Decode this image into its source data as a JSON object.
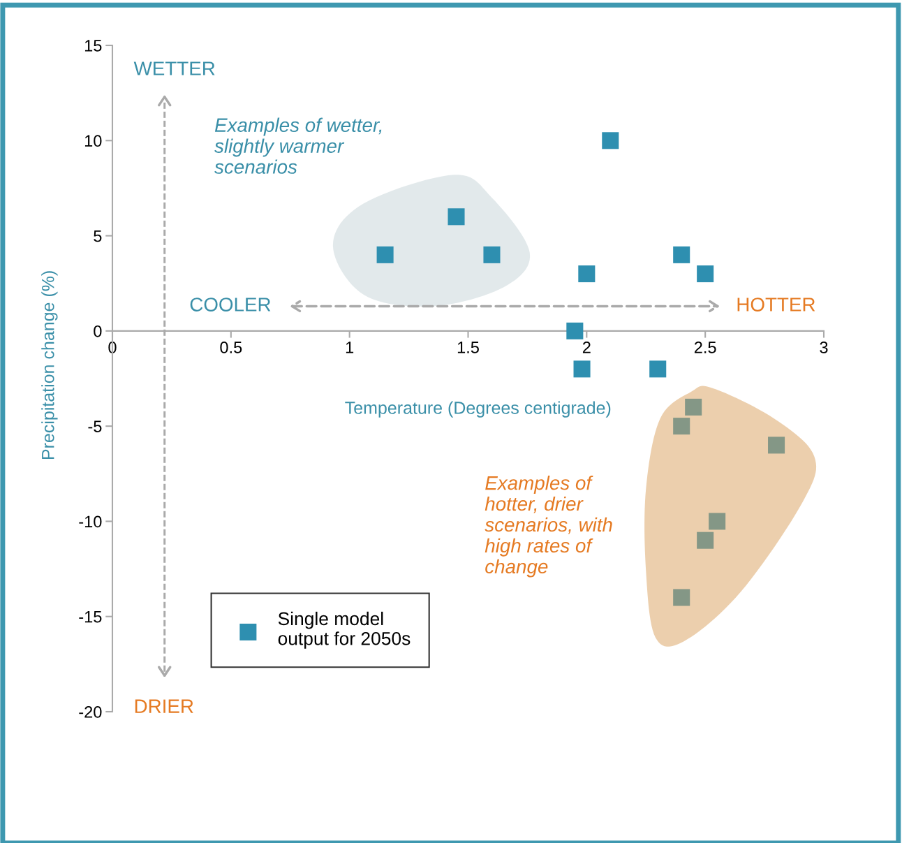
{
  "chart_data": {
    "type": "scatter",
    "xlabel": "Temperature (Degrees centigrade)",
    "ylabel": "Precipitation change (%)",
    "x": [
      1.15,
      1.45,
      1.6,
      2.1,
      2.0,
      2.4,
      2.5,
      1.95,
      1.98,
      2.3,
      2.45,
      2.4,
      2.8,
      2.55,
      2.5,
      2.4
    ],
    "series": [
      {
        "name": "Single model output for 2050s",
        "color": "#2e8fb0",
        "values": [
          4,
          6,
          4,
          10,
          3,
          4,
          3,
          0,
          -2,
          -2,
          -4,
          -5,
          -6,
          -10,
          -11,
          -14
        ]
      }
    ],
    "xlim": [
      0,
      3
    ],
    "xticks": [
      0,
      0.5,
      1,
      1.5,
      2,
      2.5,
      3
    ],
    "ylim": [
      -20,
      15
    ],
    "yticks": [
      -20,
      -15,
      -10,
      -5,
      0,
      5,
      10,
      15
    ],
    "marker": "square",
    "grid": false,
    "legend": "bottom left",
    "annotations": [
      "WETTER",
      "DRIER",
      "COOLER",
      "HOTTER",
      "Examples of wetter,\nslightly warmer\nscenarios",
      "Examples of\nhotter, drier\nscenarios, with\nhigh rates of\nchange"
    ]
  }
}
